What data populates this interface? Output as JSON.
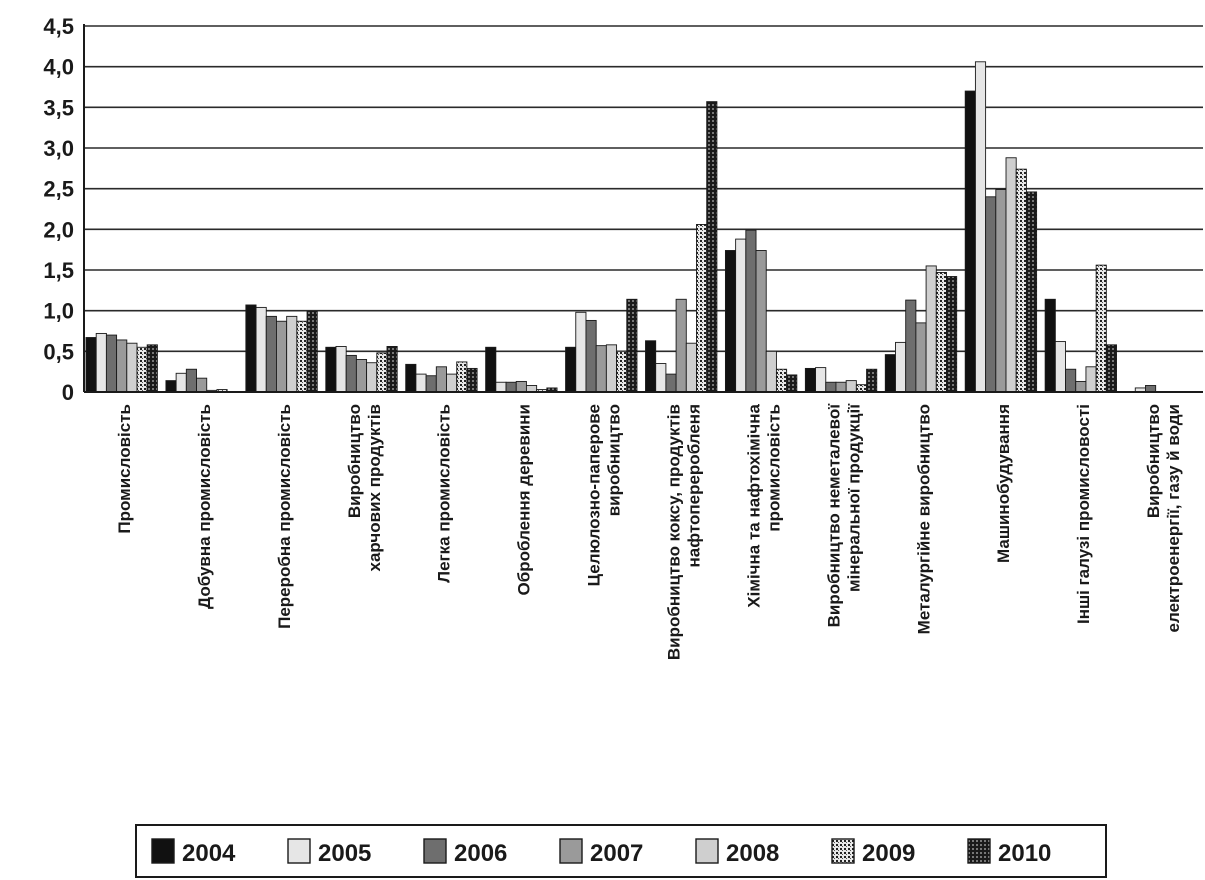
{
  "chart_data": {
    "type": "bar",
    "title": "",
    "xlabel": "",
    "ylabel": "",
    "ylim": [
      0,
      4.5
    ],
    "yticks": [
      "0",
      "0,5",
      "1,0",
      "1,5",
      "2,0",
      "2,5",
      "3,0",
      "3,5",
      "4,0",
      "4,5"
    ],
    "grid": true,
    "legend_position": "bottom",
    "categories": [
      [
        "Промисловість"
      ],
      [
        "Добувна промисловість"
      ],
      [
        "Переробна промисловість"
      ],
      [
        "Виробництво",
        "харчових продуктів"
      ],
      [
        "Легка промисловість"
      ],
      [
        "Оброблення деревини"
      ],
      [
        "Целюлозно-паперове",
        "виробництво"
      ],
      [
        "Виробництво коксу, продуктів",
        "нафтопереробленя"
      ],
      [
        "Хімічна та нафтохімічна",
        "промисловість"
      ],
      [
        "Виробництво неметалевої",
        "мінеральної продукції"
      ],
      [
        "Металургійне виробництво"
      ],
      [
        "Машинобудування"
      ],
      [
        "Інші галузі промисловості"
      ],
      [
        "Виробництво",
        "електроенергії, газу й води"
      ]
    ],
    "series": [
      {
        "name": "2004",
        "color": "#111111",
        "pattern": "solid",
        "values": [
          0.67,
          0.14,
          1.07,
          0.55,
          0.34,
          0.55,
          0.55,
          0.63,
          1.74,
          0.29,
          0.46,
          3.7,
          1.14,
          0.0
        ]
      },
      {
        "name": "2005",
        "color": "#e6e6e6",
        "pattern": "solid",
        "values": [
          0.72,
          0.23,
          1.04,
          0.56,
          0.22,
          0.12,
          0.98,
          0.35,
          1.88,
          0.3,
          0.61,
          4.06,
          0.62,
          0.05
        ]
      },
      {
        "name": "2006",
        "color": "#6e6e6e",
        "pattern": "solid",
        "values": [
          0.7,
          0.28,
          0.93,
          0.45,
          0.2,
          0.12,
          0.88,
          0.22,
          1.99,
          0.12,
          1.13,
          2.4,
          0.28,
          0.08
        ]
      },
      {
        "name": "2007",
        "color": "#9a9a9a",
        "pattern": "solid",
        "values": [
          0.64,
          0.17,
          0.87,
          0.4,
          0.31,
          0.13,
          0.57,
          1.14,
          1.74,
          0.12,
          0.85,
          2.49,
          0.13,
          0.0
        ]
      },
      {
        "name": "2008",
        "color": "#cfcfcf",
        "pattern": "solid",
        "values": [
          0.6,
          0.02,
          0.93,
          0.36,
          0.22,
          0.08,
          0.58,
          0.6,
          0.5,
          0.14,
          1.55,
          2.88,
          0.31,
          0.0
        ]
      },
      {
        "name": "2009",
        "color": "#bdbdbd",
        "pattern": "dots",
        "values": [
          0.55,
          0.03,
          0.87,
          0.48,
          0.37,
          0.03,
          0.5,
          2.06,
          0.28,
          0.09,
          1.47,
          2.74,
          1.56,
          0.0
        ]
      },
      {
        "name": "2010",
        "color": "#2a2a2a",
        "pattern": "checker",
        "values": [
          0.58,
          0.0,
          0.99,
          0.56,
          0.29,
          0.05,
          1.14,
          3.57,
          0.21,
          0.28,
          1.42,
          2.46,
          0.58,
          0.0
        ]
      }
    ]
  }
}
